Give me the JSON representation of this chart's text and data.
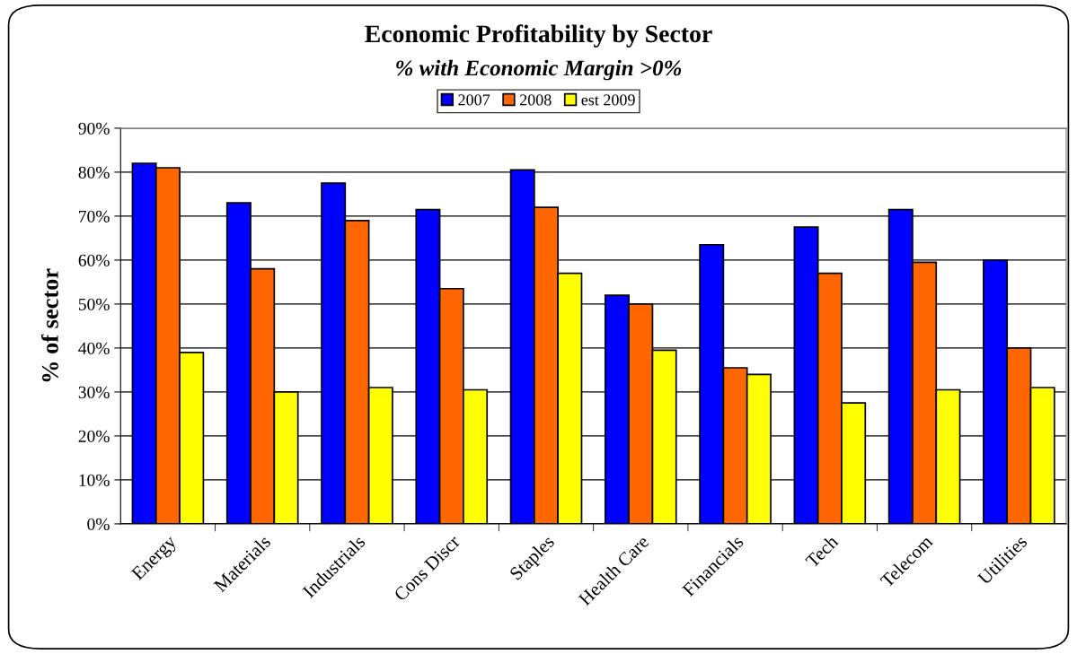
{
  "chart_data": {
    "type": "bar",
    "title": "Economic Profitability by Sector",
    "subtitle": "% with Economic Margin >0%",
    "ylabel": "% of sector",
    "categories": [
      "Energy",
      "Materials",
      "Industrials",
      "Cons Discr",
      "Staples",
      "Health Care",
      "Financials",
      "Tech",
      "Telecom",
      "Utilities"
    ],
    "series": [
      {
        "name": "2007",
        "color": "#0000ff",
        "values": [
          82,
          73,
          77.5,
          71.5,
          80.5,
          52,
          63.5,
          67.5,
          71.5,
          60
        ]
      },
      {
        "name": "2008",
        "color": "#ff6600",
        "values": [
          81,
          58,
          69,
          53.5,
          72,
          50,
          35.5,
          57,
          59.5,
          40
        ]
      },
      {
        "name": "est 2009",
        "color": "#ffff00",
        "values": [
          39,
          30,
          31,
          30.5,
          57,
          39.5,
          34,
          27.5,
          30.5,
          31
        ]
      }
    ],
    "ylim": [
      0,
      90
    ],
    "yticks": [
      {
        "value": 0,
        "label": "0%"
      },
      {
        "value": 10,
        "label": "10%"
      },
      {
        "value": 20,
        "label": "20%"
      },
      {
        "value": 30,
        "label": "30%"
      },
      {
        "value": 40,
        "label": "40%"
      },
      {
        "value": 50,
        "label": "50%"
      },
      {
        "value": 60,
        "label": "60%"
      },
      {
        "value": 70,
        "label": "70%"
      },
      {
        "value": 80,
        "label": "80%"
      },
      {
        "value": 90,
        "label": "90%"
      }
    ],
    "grid": "y",
    "legend": "top"
  }
}
